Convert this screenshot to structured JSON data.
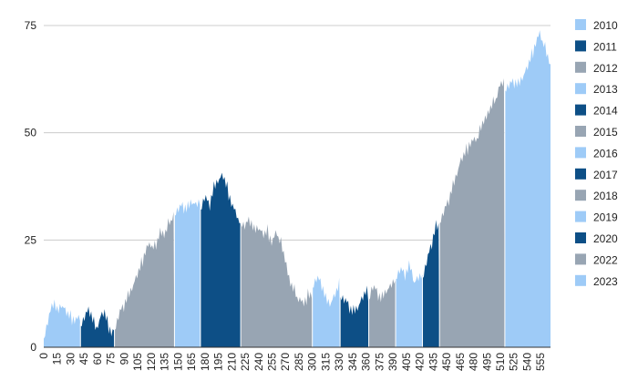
{
  "chart_data": {
    "type": "area",
    "title": "",
    "xlabel": "",
    "ylabel": "",
    "xlim": [
      0,
      566
    ],
    "ylim": [
      0,
      75
    ],
    "y_ticks": [
      0,
      25,
      50,
      75
    ],
    "x_ticks": [
      0,
      15,
      30,
      45,
      60,
      75,
      90,
      105,
      120,
      135,
      150,
      165,
      180,
      195,
      210,
      225,
      240,
      255,
      270,
      285,
      300,
      315,
      330,
      345,
      360,
      375,
      390,
      405,
      420,
      435,
      450,
      465,
      480,
      495,
      510,
      525,
      540,
      555
    ],
    "grid": true,
    "legend_position": "right",
    "colors": [
      "#9ecbf7",
      "#0d4f86",
      "#98a5b3"
    ],
    "series": [
      {
        "name": "2010",
        "color": "#9ecbf7",
        "x_range": [
          0,
          41
        ],
        "points": [
          [
            0,
            2
          ],
          [
            6,
            7
          ],
          [
            11,
            11
          ],
          [
            15,
            8
          ],
          [
            20,
            10
          ],
          [
            25,
            8
          ],
          [
            30,
            7
          ],
          [
            35,
            6
          ],
          [
            41,
            7
          ]
        ]
      },
      {
        "name": "2011",
        "color": "#0d4f86",
        "x_range": [
          41,
          79
        ],
        "points": [
          [
            41,
            5
          ],
          [
            46,
            7
          ],
          [
            51,
            9
          ],
          [
            55,
            6
          ],
          [
            59,
            4
          ],
          [
            63,
            7
          ],
          [
            68,
            8
          ],
          [
            72,
            5
          ],
          [
            76,
            3
          ],
          [
            79,
            4
          ]
        ]
      },
      {
        "name": "2012",
        "color": "#98a5b3",
        "x_range": [
          79,
          146
        ],
        "points": [
          [
            79,
            4
          ],
          [
            85,
            8
          ],
          [
            95,
            12
          ],
          [
            105,
            17
          ],
          [
            115,
            23
          ],
          [
            120,
            24
          ],
          [
            125,
            23
          ],
          [
            130,
            27
          ],
          [
            135,
            26
          ],
          [
            140,
            29
          ],
          [
            146,
            31
          ]
        ]
      },
      {
        "name": "2013",
        "color": "#9ecbf7",
        "x_range": [
          146,
          175
        ],
        "points": [
          [
            146,
            31
          ],
          [
            150,
            32
          ],
          [
            155,
            33
          ],
          [
            160,
            32
          ],
          [
            165,
            34
          ],
          [
            170,
            33
          ],
          [
            175,
            34
          ]
        ]
      },
      {
        "name": "2014",
        "color": "#0d4f86",
        "x_range": [
          175,
          220
        ],
        "points": [
          [
            175,
            32
          ],
          [
            180,
            35
          ],
          [
            185,
            33
          ],
          [
            190,
            37
          ],
          [
            195,
            39
          ],
          [
            200,
            40
          ],
          [
            205,
            37
          ],
          [
            210,
            33
          ],
          [
            215,
            31
          ],
          [
            220,
            29
          ]
        ]
      },
      {
        "name": "2015",
        "color": "#98a5b3",
        "x_range": [
          220,
          300
        ],
        "points": [
          [
            220,
            29
          ],
          [
            225,
            28
          ],
          [
            230,
            30
          ],
          [
            235,
            27
          ],
          [
            240,
            28
          ],
          [
            245,
            26
          ],
          [
            250,
            27
          ],
          [
            255,
            24
          ],
          [
            260,
            27
          ],
          [
            265,
            24
          ],
          [
            270,
            20
          ],
          [
            275,
            15
          ],
          [
            280,
            13
          ],
          [
            285,
            11
          ],
          [
            290,
            10
          ],
          [
            295,
            12
          ],
          [
            300,
            12
          ]
        ]
      },
      {
        "name": "2016",
        "color": "#9ecbf7",
        "x_range": [
          300,
          331
        ],
        "points": [
          [
            300,
            14
          ],
          [
            305,
            16
          ],
          [
            310,
            15
          ],
          [
            315,
            11
          ],
          [
            320,
            10
          ],
          [
            325,
            12
          ],
          [
            331,
            15
          ]
        ]
      },
      {
        "name": "2017",
        "color": "#0d4f86",
        "x_range": [
          331,
          363
        ],
        "points": [
          [
            331,
            12
          ],
          [
            335,
            11
          ],
          [
            340,
            10
          ],
          [
            345,
            8
          ],
          [
            350,
            9
          ],
          [
            355,
            11
          ],
          [
            360,
            13
          ],
          [
            363,
            12
          ]
        ]
      },
      {
        "name": "2018",
        "color": "#98a5b3",
        "x_range": [
          363,
          393
        ],
        "points": [
          [
            363,
            11
          ],
          [
            367,
            14
          ],
          [
            372,
            13
          ],
          [
            377,
            11
          ],
          [
            382,
            13
          ],
          [
            387,
            14
          ],
          [
            393,
            16
          ]
        ]
      },
      {
        "name": "2019",
        "color": "#9ecbf7",
        "x_range": [
          393,
          423
        ],
        "points": [
          [
            393,
            16
          ],
          [
            398,
            18
          ],
          [
            404,
            17
          ],
          [
            409,
            19
          ],
          [
            414,
            15
          ],
          [
            418,
            16
          ],
          [
            423,
            17
          ]
        ]
      },
      {
        "name": "2020",
        "color": "#0d4f86",
        "x_range": [
          423,
          442
        ],
        "points": [
          [
            423,
            16
          ],
          [
            428,
            20
          ],
          [
            433,
            24
          ],
          [
            438,
            28
          ],
          [
            442,
            28
          ]
        ]
      },
      {
        "name": "2022",
        "color": "#98a5b3",
        "x_range": [
          442,
          515
        ],
        "points": [
          [
            442,
            29
          ],
          [
            450,
            33
          ],
          [
            458,
            38
          ],
          [
            465,
            43
          ],
          [
            470,
            45
          ],
          [
            475,
            47
          ],
          [
            480,
            48
          ],
          [
            485,
            49
          ],
          [
            490,
            52
          ],
          [
            495,
            54
          ],
          [
            500,
            56
          ],
          [
            505,
            58
          ],
          [
            510,
            61
          ],
          [
            515,
            62
          ]
        ]
      },
      {
        "name": "2023",
        "color": "#9ecbf7",
        "x_range": [
          515,
          566
        ],
        "points": [
          [
            515,
            60
          ],
          [
            520,
            61
          ],
          [
            525,
            62
          ],
          [
            530,
            61
          ],
          [
            535,
            63
          ],
          [
            540,
            65
          ],
          [
            545,
            68
          ],
          [
            550,
            71
          ],
          [
            554,
            73
          ],
          [
            558,
            71
          ],
          [
            562,
            68
          ],
          [
            566,
            66
          ]
        ]
      }
    ]
  }
}
